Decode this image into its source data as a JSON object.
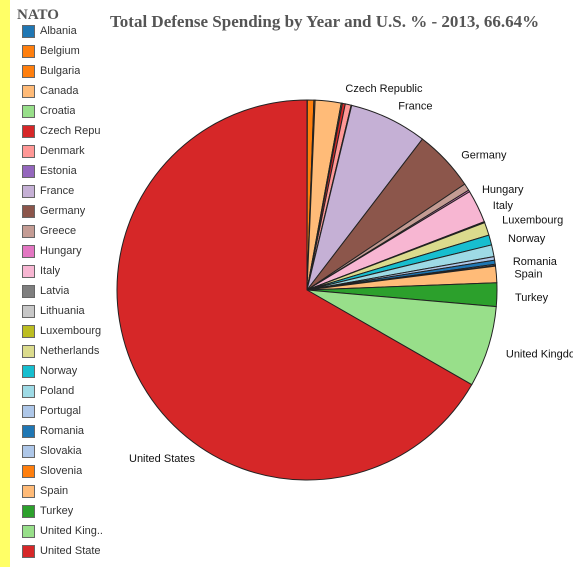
{
  "legend": {
    "title": "NATO",
    "items": [
      {
        "label": "Albania",
        "color": "#1f77b4"
      },
      {
        "label": "Belgium",
        "color": "#ff7f0e"
      },
      {
        "label": "Bulgaria",
        "color": "#ff7f0e"
      },
      {
        "label": "Canada",
        "color": "#ffbb78"
      },
      {
        "label": "Croatia",
        "color": "#98df8a"
      },
      {
        "label": "Czech Repu",
        "color": "#d62728"
      },
      {
        "label": "Denmark",
        "color": "#ff9896"
      },
      {
        "label": "Estonia",
        "color": "#9467bd"
      },
      {
        "label": "France",
        "color": "#c5b0d5"
      },
      {
        "label": "Germany",
        "color": "#8c564b"
      },
      {
        "label": "Greece",
        "color": "#c49c94"
      },
      {
        "label": "Hungary",
        "color": "#e377c2"
      },
      {
        "label": "Italy",
        "color": "#f7b6d2"
      },
      {
        "label": "Latvia",
        "color": "#7f7f7f"
      },
      {
        "label": "Lithuania",
        "color": "#c7c7c7"
      },
      {
        "label": "Luxembourg",
        "color": "#bcbd22"
      },
      {
        "label": "Netherlands",
        "color": "#dbdb8d"
      },
      {
        "label": "Norway",
        "color": "#17becf"
      },
      {
        "label": "Poland",
        "color": "#9edae5"
      },
      {
        "label": "Portugal",
        "color": "#aec7e8"
      },
      {
        "label": "Romania",
        "color": "#1f77b4"
      },
      {
        "label": "Slovakia",
        "color": "#aec7e8"
      },
      {
        "label": "Slovenia",
        "color": "#ff7f0e"
      },
      {
        "label": "Spain",
        "color": "#ffbb78"
      },
      {
        "label": "Turkey",
        "color": "#2ca02c"
      },
      {
        "label": "United King..",
        "color": "#98df8a"
      },
      {
        "label": "United State",
        "color": "#d62728"
      }
    ]
  },
  "chart_data": {
    "type": "pie",
    "title": "Total Defense Spending by Year and U.S. % - 2013, 66.64%",
    "slices": [
      {
        "name": "Albania",
        "value": 0.03,
        "color": "#1f77b4"
      },
      {
        "name": "Belgium",
        "value": 0.55,
        "color": "#ff7f0e"
      },
      {
        "name": "Bulgaria",
        "value": 0.1,
        "color": "#ff7f0e"
      },
      {
        "name": "Canada",
        "value": 2.2,
        "color": "#ffbb78"
      },
      {
        "name": "Croatia",
        "value": 0.1,
        "color": "#98df8a"
      },
      {
        "name": "Czech Republic",
        "value": 0.25,
        "color": "#d62728"
      },
      {
        "name": "Denmark",
        "value": 0.5,
        "color": "#ff9896"
      },
      {
        "name": "Estonia",
        "value": 0.05,
        "color": "#9467bd"
      },
      {
        "name": "France",
        "value": 6.6,
        "color": "#c5b0d5"
      },
      {
        "name": "Germany",
        "value": 5.2,
        "color": "#8c564b"
      },
      {
        "name": "Greece",
        "value": 0.6,
        "color": "#c49c94"
      },
      {
        "name": "Hungary",
        "value": 0.15,
        "color": "#e377c2"
      },
      {
        "name": "Italy",
        "value": 2.8,
        "color": "#f7b6d2"
      },
      {
        "name": "Latvia",
        "value": 0.03,
        "color": "#7f7f7f"
      },
      {
        "name": "Lithuania",
        "value": 0.04,
        "color": "#c7c7c7"
      },
      {
        "name": "Luxembourg",
        "value": 0.02,
        "color": "#bcbd22"
      },
      {
        "name": "Netherlands",
        "value": 1.1,
        "color": "#dbdb8d"
      },
      {
        "name": "Norway",
        "value": 0.85,
        "color": "#17becf"
      },
      {
        "name": "Poland",
        "value": 1.0,
        "color": "#9edae5"
      },
      {
        "name": "Portugal",
        "value": 0.3,
        "color": "#aec7e8"
      },
      {
        "name": "Romania",
        "value": 0.35,
        "color": "#1f77b4"
      },
      {
        "name": "Slovakia",
        "value": 0.1,
        "color": "#aec7e8"
      },
      {
        "name": "Slovenia",
        "value": 0.05,
        "color": "#ff7f0e"
      },
      {
        "name": "Spain",
        "value": 1.4,
        "color": "#ffbb78"
      },
      {
        "name": "Turkey",
        "value": 2.0,
        "color": "#2ca02c"
      },
      {
        "name": "United Kingdom",
        "value": 6.9,
        "color": "#98df8a"
      },
      {
        "name": "United States",
        "value": 66.64,
        "color": "#d62728"
      }
    ],
    "labels": [
      "Czech Republic",
      "France",
      "Germany",
      "Hungary",
      "Italy",
      "Luxembourg",
      "Norway",
      "Romania",
      "Spain",
      "Turkey",
      "United Kingdom",
      "United States"
    ]
  }
}
